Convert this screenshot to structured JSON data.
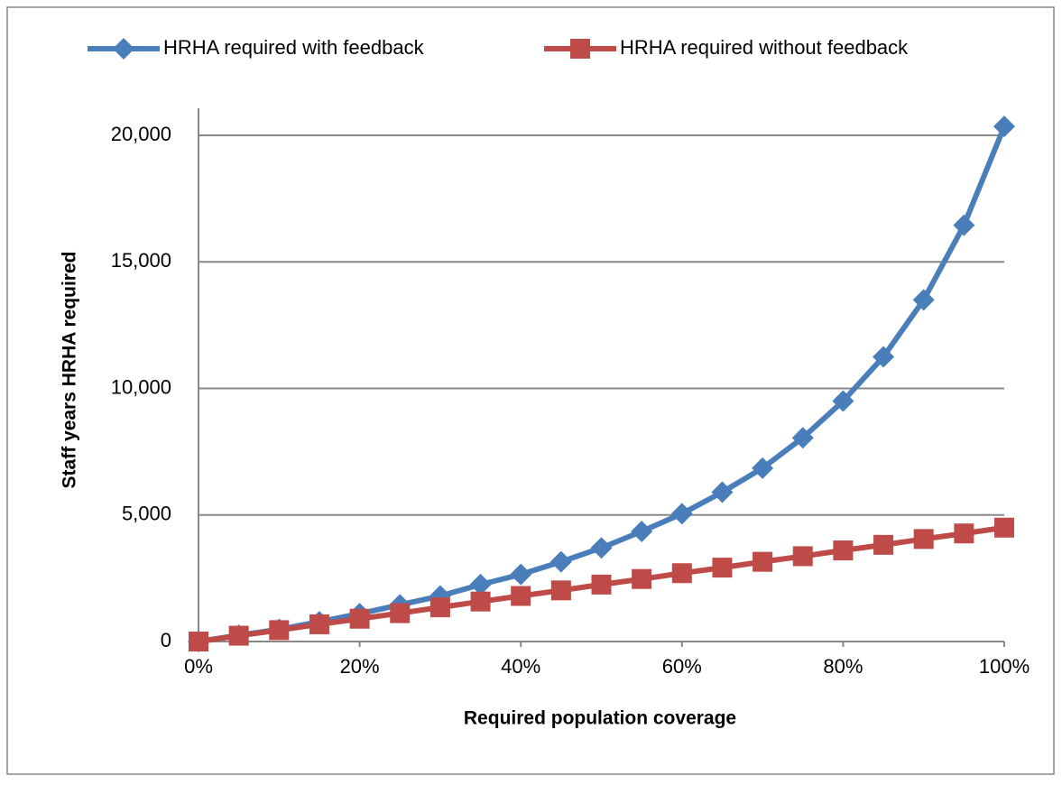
{
  "chart_data": {
    "type": "line",
    "xlabel": "Required population  coverage",
    "ylabel": "Staff years HRHA required",
    "x": [
      0,
      5,
      10,
      15,
      20,
      25,
      30,
      35,
      40,
      45,
      50,
      55,
      60,
      65,
      70,
      75,
      80,
      85,
      90,
      95,
      100
    ],
    "series": [
      {
        "name": "HRHA required with feedback",
        "color": "#4a7ebb",
        "marker": "diamond",
        "values": [
          0,
          250,
          480,
          780,
          1100,
          1450,
          1800,
          2250,
          2650,
          3150,
          3700,
          4350,
          5050,
          5900,
          6850,
          8050,
          9500,
          11250,
          13500,
          16450,
          20350
        ]
      },
      {
        "name": "HRHA required without feedback",
        "color": "#be4b48",
        "marker": "square",
        "values": [
          0,
          230,
          450,
          680,
          900,
          1120,
          1350,
          1580,
          1800,
          2020,
          2250,
          2470,
          2700,
          2920,
          3150,
          3370,
          3600,
          3820,
          4050,
          4270,
          4500
        ]
      }
    ],
    "xlim": [
      0,
      100
    ],
    "xticks": [
      {
        "value": 0,
        "label": "0%"
      },
      {
        "value": 20,
        "label": "20%"
      },
      {
        "value": 40,
        "label": "40%"
      },
      {
        "value": 60,
        "label": "60%"
      },
      {
        "value": 80,
        "label": "80%"
      },
      {
        "value": 100,
        "label": "100%"
      }
    ],
    "ylim": [
      0,
      20000
    ],
    "yticks": [
      0,
      {
        "value": 5000,
        "label": "5,000"
      },
      {
        "value": 10000,
        "label": "10,000"
      },
      {
        "value": 15000,
        "label": "15,000"
      },
      {
        "value": 20000,
        "label": "20,000"
      }
    ],
    "grid": true,
    "legend": "top"
  }
}
